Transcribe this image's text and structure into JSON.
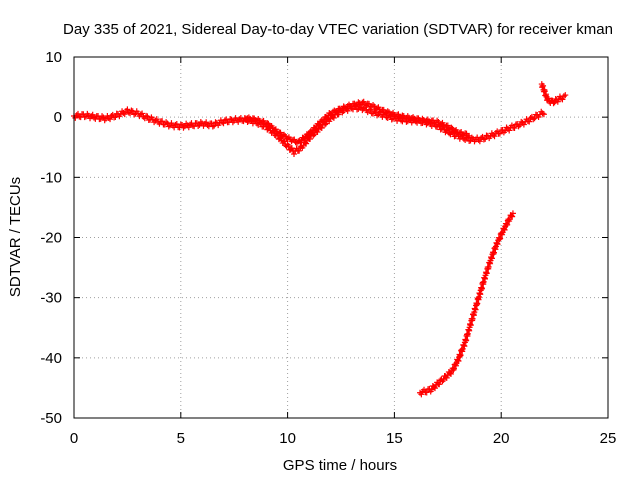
{
  "chart_data": {
    "type": "scatter",
    "title": "Day 335 of 2021, Sidereal Day-to-day VTEC variation (SDTVAR) for receiver kman",
    "xlabel": "GPS time / hours",
    "ylabel": "SDTVAR / TECUs",
    "xlim": [
      0,
      25
    ],
    "ylim": [
      -50,
      10
    ],
    "xticks": [
      0,
      5,
      10,
      15,
      20,
      25
    ],
    "yticks": [
      10,
      0,
      -10,
      -20,
      -30,
      -40,
      -50
    ],
    "grid": true,
    "marker": "+",
    "color": "#ff0000",
    "series": [
      {
        "name": "main-band",
        "points": [
          [
            0,
            0.2
          ],
          [
            0.5,
            0.3
          ],
          [
            1,
            0
          ],
          [
            1.5,
            -0.2
          ],
          [
            2,
            0.3
          ],
          [
            2.5,
            1.0
          ],
          [
            3,
            0.6
          ],
          [
            3.5,
            -0.2
          ],
          [
            4,
            -0.8
          ],
          [
            4.5,
            -1.3
          ],
          [
            5,
            -1.5
          ],
          [
            5.5,
            -1.3
          ],
          [
            6,
            -1.1
          ],
          [
            6.5,
            -1.3
          ],
          [
            7,
            -0.7
          ],
          [
            7.5,
            -0.5
          ],
          [
            8,
            -0.4
          ],
          [
            8.5,
            -0.8
          ],
          [
            9,
            -1.6
          ],
          [
            9.5,
            -3.0
          ],
          [
            10,
            -4.8
          ],
          [
            10.3,
            -5.8
          ],
          [
            10.6,
            -5.2
          ],
          [
            11,
            -3.5
          ],
          [
            11.5,
            -1.8
          ],
          [
            12,
            -0.2
          ],
          [
            12.5,
            1.0
          ],
          [
            13,
            1.6
          ],
          [
            13.5,
            1.5
          ],
          [
            14,
            0.8
          ],
          [
            14.5,
            0.3
          ],
          [
            15,
            -0.2
          ],
          [
            15.5,
            -0.5
          ],
          [
            16,
            -0.6
          ],
          [
            16.5,
            -0.9
          ],
          [
            17,
            -1.4
          ],
          [
            17.5,
            -2.4
          ],
          [
            18,
            -3.2
          ],
          [
            18.5,
            -3.7
          ],
          [
            19,
            -3.7
          ],
          [
            19.5,
            -3.1
          ],
          [
            20,
            -2.4
          ],
          [
            20.5,
            -1.7
          ],
          [
            21,
            -1.0
          ],
          [
            21.5,
            -0.1
          ],
          [
            22,
            0.8
          ]
        ]
      },
      {
        "name": "upper-band",
        "points": [
          [
            8,
            -0.2
          ],
          [
            8.5,
            -0.4
          ],
          [
            9,
            -1.0
          ],
          [
            9.5,
            -2.4
          ],
          [
            10,
            -3.5
          ],
          [
            10.5,
            -4.2
          ],
          [
            11,
            -2.8
          ],
          [
            11.5,
            -1.0
          ],
          [
            12,
            0.6
          ],
          [
            12.5,
            1.4
          ],
          [
            13,
            2.0
          ],
          [
            13.5,
            2.4
          ],
          [
            14,
            1.8
          ],
          [
            14.5,
            1.0
          ],
          [
            15,
            0.4
          ],
          [
            15.5,
            0.0
          ],
          [
            16,
            -0.3
          ],
          [
            16.5,
            -0.6
          ],
          [
            17,
            -0.8
          ],
          [
            17.5,
            -1.6
          ],
          [
            18,
            -2.6
          ],
          [
            18.5,
            -3.0
          ]
        ]
      },
      {
        "name": "late-cluster",
        "points": [
          [
            21.9,
            5.5
          ],
          [
            22.0,
            4.5
          ],
          [
            22.1,
            3.5
          ],
          [
            22.2,
            2.8
          ],
          [
            22.4,
            2.5
          ],
          [
            22.6,
            2.8
          ],
          [
            22.8,
            3.2
          ],
          [
            23.0,
            3.4
          ]
        ]
      },
      {
        "name": "descending-arc",
        "points": [
          [
            16.2,
            -45.8
          ],
          [
            16.7,
            -45.3
          ],
          [
            17.2,
            -43.8
          ],
          [
            17.7,
            -42.2
          ],
          [
            18.0,
            -40.2
          ],
          [
            18.3,
            -37.5
          ],
          [
            18.6,
            -34.0
          ],
          [
            18.9,
            -30.5
          ],
          [
            19.2,
            -27.0
          ],
          [
            19.5,
            -23.8
          ],
          [
            19.8,
            -21.0
          ],
          [
            20.1,
            -18.8
          ],
          [
            20.4,
            -16.8
          ],
          [
            20.55,
            -16.0
          ]
        ]
      }
    ]
  }
}
